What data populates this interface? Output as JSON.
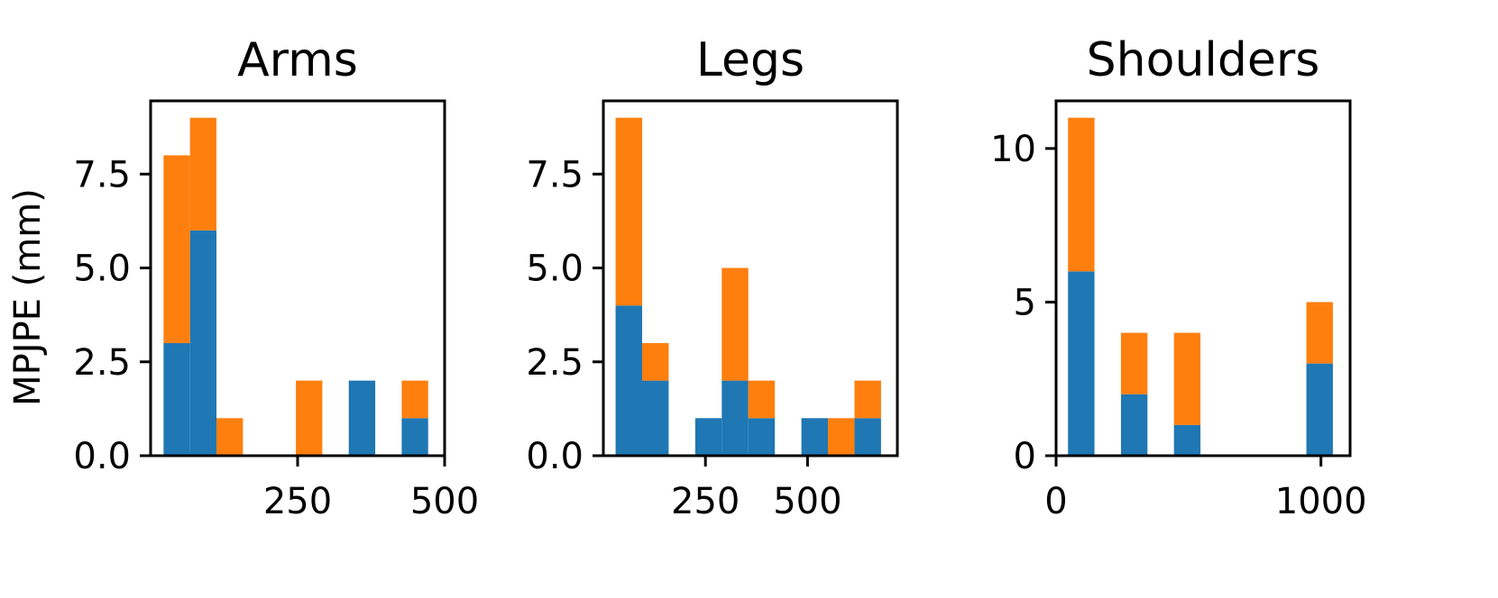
{
  "figure": {
    "ylabel": "MPJPE (mm)"
  },
  "chart_data": [
    {
      "type": "bar",
      "stacked": true,
      "title": "Arms",
      "ylabel": "MPJPE (mm)",
      "xlim": [
        0,
        500
      ],
      "ylim": [
        0,
        9.45
      ],
      "xticks": [
        250,
        500
      ],
      "xtick_labels": [
        "250",
        "500"
      ],
      "yticks": [
        0,
        2.5,
        5,
        7.5
      ],
      "ytick_labels": [
        "0.0",
        "2.5",
        "5.0",
        "7.5"
      ],
      "bin_edges": [
        22,
        67,
        112,
        157,
        202,
        247,
        292,
        337,
        382,
        427,
        472
      ],
      "series": [
        {
          "color": "#1f77b4",
          "values": [
            3,
            6,
            0,
            0,
            0,
            0,
            0,
            2,
            0,
            1
          ]
        },
        {
          "color": "#ff7f0e",
          "values": [
            5,
            3,
            1,
            0,
            0,
            2,
            0,
            0,
            0,
            1
          ]
        }
      ]
    },
    {
      "type": "bar",
      "stacked": true,
      "title": "Legs",
      "xlim": [
        0,
        720
      ],
      "ylim": [
        0,
        9.45
      ],
      "xticks": [
        250,
        500
      ],
      "xtick_labels": [
        "250",
        "500"
      ],
      "yticks": [
        0,
        2.5,
        5,
        7.5
      ],
      "ytick_labels": [
        "0.0",
        "2.5",
        "5.0",
        "7.5"
      ],
      "bin_edges": [
        30,
        95,
        160,
        225,
        290,
        355,
        420,
        485,
        550,
        615,
        680
      ],
      "series": [
        {
          "color": "#1f77b4",
          "values": [
            4,
            2,
            0,
            1,
            2,
            1,
            0,
            1,
            0,
            1
          ]
        },
        {
          "color": "#ff7f0e",
          "values": [
            5,
            1,
            0,
            0,
            3,
            1,
            0,
            0,
            1,
            1
          ]
        }
      ]
    },
    {
      "type": "bar",
      "stacked": true,
      "title": "Shoulders",
      "xlim": [
        0,
        1110
      ],
      "ylim": [
        0,
        11.55
      ],
      "xticks": [
        0,
        1000
      ],
      "xtick_labels": [
        "0",
        "1000"
      ],
      "yticks": [
        0,
        5,
        10
      ],
      "ytick_labels": [
        "0",
        "5",
        "10"
      ],
      "bin_edges": [
        45,
        145,
        245,
        345,
        445,
        545,
        645,
        745,
        845,
        945,
        1045
      ],
      "series": [
        {
          "color": "#1f77b4",
          "values": [
            6,
            0,
            2,
            0,
            1,
            0,
            0,
            0,
            0,
            3
          ]
        },
        {
          "color": "#ff7f0e",
          "values": [
            5,
            0,
            2,
            0,
            3,
            0,
            0,
            0,
            0,
            2
          ]
        }
      ]
    }
  ]
}
